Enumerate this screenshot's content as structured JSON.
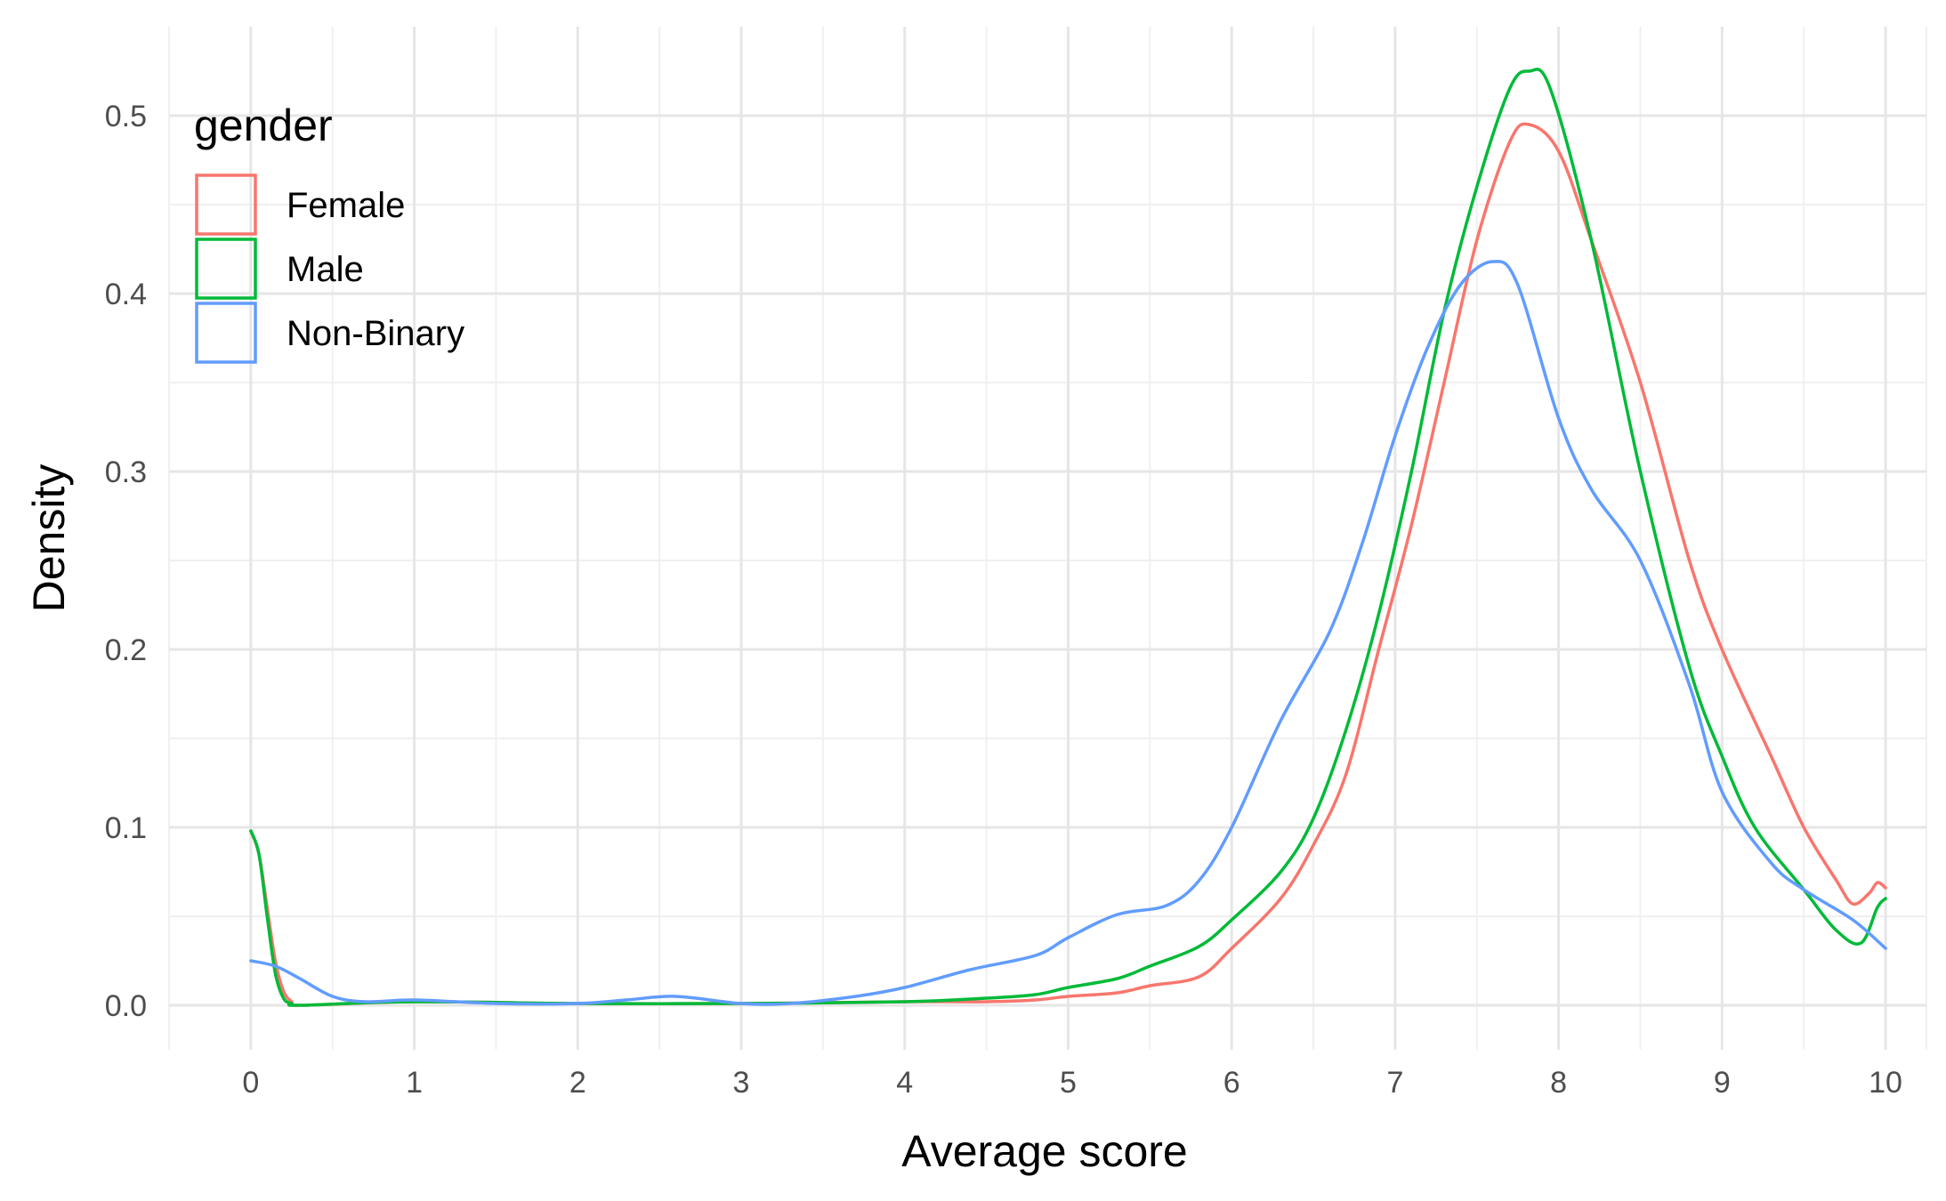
{
  "chart_data": {
    "type": "line",
    "xlabel": "Average score",
    "ylabel": "Density",
    "xlim": [
      -0.5,
      10.25
    ],
    "ylim": [
      -0.025,
      0.55
    ],
    "x_ticks": [
      0,
      1,
      2,
      3,
      4,
      5,
      6,
      7,
      8,
      9,
      10
    ],
    "y_ticks": [
      0.0,
      0.1,
      0.2,
      0.3,
      0.4,
      0.5
    ],
    "x_tick_labels": [
      "0",
      "1",
      "2",
      "3",
      "4",
      "5",
      "6",
      "7",
      "8",
      "9",
      "10"
    ],
    "y_tick_labels": [
      "0.0",
      "0.1",
      "0.2",
      "0.3",
      "0.4",
      "0.5"
    ],
    "grid": true,
    "legend": {
      "title": "gender",
      "placement": "top-left",
      "entries": [
        "Female",
        "Male",
        "Non-Binary"
      ]
    },
    "series": [
      {
        "name": "Female",
        "color": "#F8766D",
        "points": [
          [
            0,
            0.098
          ],
          [
            0.05,
            0.085
          ],
          [
            0.1,
            0.055
          ],
          [
            0.15,
            0.025
          ],
          [
            0.2,
            0.008
          ],
          [
            0.25,
            0.002
          ],
          [
            0.3,
            0.0
          ],
          [
            1,
            0.002
          ],
          [
            2,
            0.001
          ],
          [
            3,
            0.001
          ],
          [
            4,
            0.002
          ],
          [
            4.5,
            0.002
          ],
          [
            4.8,
            0.003
          ],
          [
            5,
            0.005
          ],
          [
            5.3,
            0.007
          ],
          [
            5.5,
            0.011
          ],
          [
            5.8,
            0.016
          ],
          [
            6,
            0.032
          ],
          [
            6.3,
            0.06
          ],
          [
            6.5,
            0.09
          ],
          [
            6.7,
            0.13
          ],
          [
            6.9,
            0.2
          ],
          [
            7.1,
            0.27
          ],
          [
            7.3,
            0.35
          ],
          [
            7.5,
            0.43
          ],
          [
            7.7,
            0.485
          ],
          [
            7.82,
            0.495
          ],
          [
            8.0,
            0.48
          ],
          [
            8.2,
            0.43
          ],
          [
            8.5,
            0.35
          ],
          [
            8.8,
            0.25
          ],
          [
            9.0,
            0.2
          ],
          [
            9.3,
            0.14
          ],
          [
            9.5,
            0.1
          ],
          [
            9.7,
            0.07
          ],
          [
            9.8,
            0.057
          ],
          [
            9.9,
            0.063
          ],
          [
            9.95,
            0.069
          ],
          [
            10,
            0.066
          ]
        ]
      },
      {
        "name": "Male",
        "color": "#00BA38",
        "points": [
          [
            0,
            0.098
          ],
          [
            0.05,
            0.085
          ],
          [
            0.1,
            0.05
          ],
          [
            0.15,
            0.018
          ],
          [
            0.2,
            0.004
          ],
          [
            0.25,
            0.001
          ],
          [
            0.3,
            0.0
          ],
          [
            1,
            0.002
          ],
          [
            2,
            0.001
          ],
          [
            3,
            0.001
          ],
          [
            4,
            0.002
          ],
          [
            4.5,
            0.004
          ],
          [
            4.8,
            0.006
          ],
          [
            5,
            0.01
          ],
          [
            5.3,
            0.015
          ],
          [
            5.5,
            0.022
          ],
          [
            5.8,
            0.033
          ],
          [
            6,
            0.048
          ],
          [
            6.3,
            0.075
          ],
          [
            6.5,
            0.105
          ],
          [
            6.7,
            0.155
          ],
          [
            6.9,
            0.22
          ],
          [
            7.1,
            0.3
          ],
          [
            7.3,
            0.39
          ],
          [
            7.5,
            0.46
          ],
          [
            7.7,
            0.515
          ],
          [
            7.82,
            0.525
          ],
          [
            7.95,
            0.515
          ],
          [
            8.2,
            0.43
          ],
          [
            8.5,
            0.3
          ],
          [
            8.8,
            0.19
          ],
          [
            9.0,
            0.14
          ],
          [
            9.2,
            0.1
          ],
          [
            9.5,
            0.065
          ],
          [
            9.7,
            0.042
          ],
          [
            9.85,
            0.035
          ],
          [
            9.95,
            0.055
          ],
          [
            10,
            0.06
          ]
        ]
      },
      {
        "name": "Non-Binary",
        "color": "#619CFF",
        "points": [
          [
            0,
            0.025
          ],
          [
            0.15,
            0.022
          ],
          [
            0.3,
            0.015
          ],
          [
            0.5,
            0.005
          ],
          [
            0.7,
            0.002
          ],
          [
            1,
            0.003
          ],
          [
            1.5,
            0.001
          ],
          [
            2,
            0.001
          ],
          [
            2.3,
            0.003
          ],
          [
            2.6,
            0.005
          ],
          [
            3,
            0.001
          ],
          [
            3.3,
            0.001
          ],
          [
            3.7,
            0.005
          ],
          [
            4,
            0.01
          ],
          [
            4.4,
            0.02
          ],
          [
            4.8,
            0.028
          ],
          [
            5,
            0.038
          ],
          [
            5.3,
            0.051
          ],
          [
            5.6,
            0.056
          ],
          [
            5.8,
            0.07
          ],
          [
            6,
            0.1
          ],
          [
            6.3,
            0.16
          ],
          [
            6.6,
            0.21
          ],
          [
            6.8,
            0.26
          ],
          [
            7.0,
            0.32
          ],
          [
            7.2,
            0.37
          ],
          [
            7.4,
            0.405
          ],
          [
            7.6,
            0.418
          ],
          [
            7.75,
            0.405
          ],
          [
            8.0,
            0.33
          ],
          [
            8.2,
            0.29
          ],
          [
            8.5,
            0.25
          ],
          [
            8.8,
            0.18
          ],
          [
            9.0,
            0.12
          ],
          [
            9.3,
            0.08
          ],
          [
            9.5,
            0.065
          ],
          [
            9.8,
            0.048
          ],
          [
            10,
            0.032
          ]
        ]
      }
    ]
  }
}
